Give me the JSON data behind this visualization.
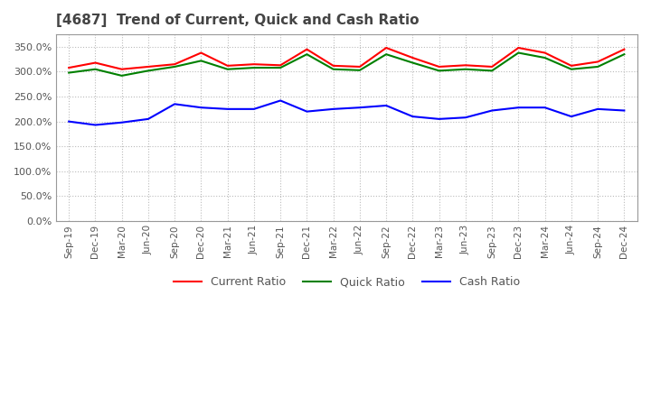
{
  "title": "[4687]  Trend of Current, Quick and Cash Ratio",
  "x_labels": [
    "Sep-19",
    "Dec-19",
    "Mar-20",
    "Jun-20",
    "Sep-20",
    "Dec-20",
    "Mar-21",
    "Jun-21",
    "Sep-21",
    "Dec-21",
    "Mar-22",
    "Jun-22",
    "Sep-22",
    "Dec-22",
    "Mar-23",
    "Jun-23",
    "Sep-23",
    "Dec-23",
    "Mar-24",
    "Jun-24",
    "Sep-24",
    "Dec-24"
  ],
  "current_ratio": [
    3.08,
    3.18,
    3.05,
    3.1,
    3.15,
    3.38,
    3.12,
    3.15,
    3.13,
    3.45,
    3.12,
    3.1,
    3.48,
    3.28,
    3.1,
    3.13,
    3.1,
    3.48,
    3.38,
    3.12,
    3.2,
    3.45
  ],
  "quick_ratio": [
    2.98,
    3.05,
    2.92,
    3.02,
    3.1,
    3.22,
    3.05,
    3.08,
    3.08,
    3.35,
    3.05,
    3.03,
    3.35,
    3.18,
    3.02,
    3.05,
    3.02,
    3.38,
    3.28,
    3.05,
    3.1,
    3.35
  ],
  "cash_ratio": [
    2.0,
    1.93,
    1.98,
    2.05,
    2.35,
    2.28,
    2.25,
    2.25,
    2.42,
    2.2,
    2.25,
    2.28,
    2.32,
    2.1,
    2.05,
    2.08,
    2.22,
    2.28,
    2.28,
    2.1,
    2.25,
    2.22
  ],
  "current_color": "#ff0000",
  "quick_color": "#008000",
  "cash_color": "#0000ff",
  "bg_color": "#ffffff",
  "grid_color": "#bbbbbb",
  "ylim": [
    0.0,
    3.75
  ],
  "yticks": [
    0.0,
    0.5,
    1.0,
    1.5,
    2.0,
    2.5,
    3.0,
    3.5
  ],
  "legend_labels": [
    "Current Ratio",
    "Quick Ratio",
    "Cash Ratio"
  ]
}
